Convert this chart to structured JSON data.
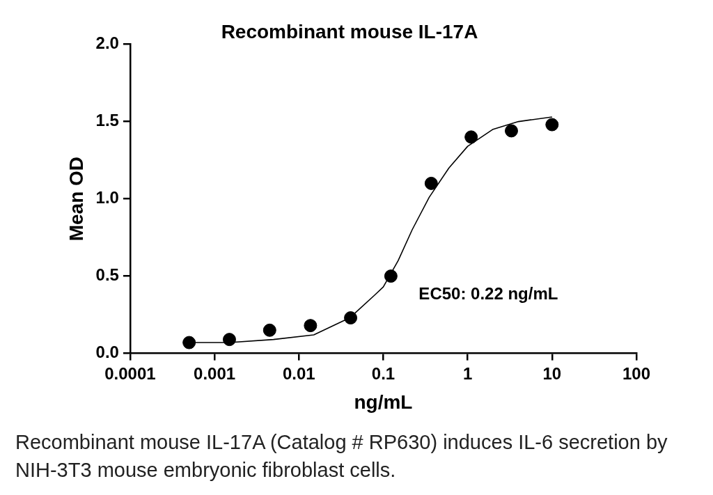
{
  "chart_data": {
    "type": "scatter",
    "title": "Recombinant mouse IL-17A",
    "xlabel": "ng/mL",
    "ylabel": "Mean OD",
    "log": "x",
    "xlim": [
      0.0001,
      100
    ],
    "xticks": [
      0.0001,
      0.001,
      0.01,
      0.1,
      1,
      10,
      100
    ],
    "ylim": [
      0,
      2
    ],
    "yticks": [
      {
        "value": 0,
        "label": "0.0"
      },
      {
        "value": 0.5,
        "label": "0.5"
      },
      {
        "value": 1,
        "label": "1.0"
      },
      {
        "value": 1.5,
        "label": "1.5"
      },
      {
        "value": 2,
        "label": "2.0"
      }
    ],
    "grid": false,
    "legend": false,
    "marker": "circle",
    "series": [
      {
        "type": "scatter",
        "color": "#000000",
        "x": [
          0.0005,
          0.0015,
          0.0045,
          0.0137,
          0.041,
          0.123,
          0.37,
          1.1,
          3.3,
          10
        ],
        "values": [
          0.07,
          0.09,
          0.15,
          0.18,
          0.23,
          0.5,
          1.1,
          1.4,
          1.44,
          1.48
        ]
      },
      {
        "type": "line",
        "color": "#000000",
        "marker": "none",
        "x": [
          0.0005,
          0.0015,
          0.005,
          0.015,
          0.04,
          0.08,
          0.1,
          0.15,
          0.22,
          0.35,
          0.6,
          1,
          2,
          4,
          10
        ],
        "values": [
          0.07,
          0.07,
          0.09,
          0.12,
          0.23,
          0.38,
          0.43,
          0.6,
          0.8,
          1.01,
          1.2,
          1.34,
          1.45,
          1.5,
          1.53
        ]
      }
    ],
    "annotations": [
      "EC50: 0.22 ng/mL",
      "Recombinant mouse IL-17A    (Catalog # RP630) induces IL-6 secretion by NIH-3T3 mouse embryonic fibroblast cells."
    ]
  }
}
